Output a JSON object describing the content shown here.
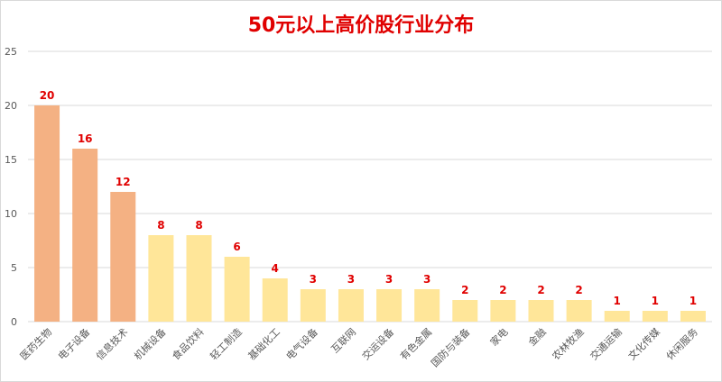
{
  "chart_data": {
    "type": "bar",
    "title": "50元以上高价股行业分布",
    "xlabel": "",
    "ylabel": "",
    "ylim": [
      0,
      25
    ],
    "yticks": [
      0,
      5,
      10,
      15,
      20,
      25
    ],
    "grid": true,
    "legend": "none",
    "categories": [
      "医药生物",
      "电子设备",
      "信息技术",
      "机械设备",
      "食品饮料",
      "轻工制造",
      "基础化工",
      "电气设备",
      "互联网",
      "交运设备",
      "有色金属",
      "国防与装备",
      "家电",
      "金融",
      "农林牧渔",
      "交通运输",
      "文化传媒",
      "休闲服务"
    ],
    "values": [
      20,
      16,
      12,
      8,
      8,
      6,
      4,
      3,
      3,
      3,
      3,
      2,
      2,
      2,
      2,
      1,
      1,
      1
    ],
    "colors": {
      "highlight": "#f4b183",
      "normal": "#ffe699",
      "data_label": "#e00000",
      "title": "#e00000",
      "grid": "#d9d9d9",
      "axis_text": "#595959"
    },
    "highlight_count": 3
  }
}
